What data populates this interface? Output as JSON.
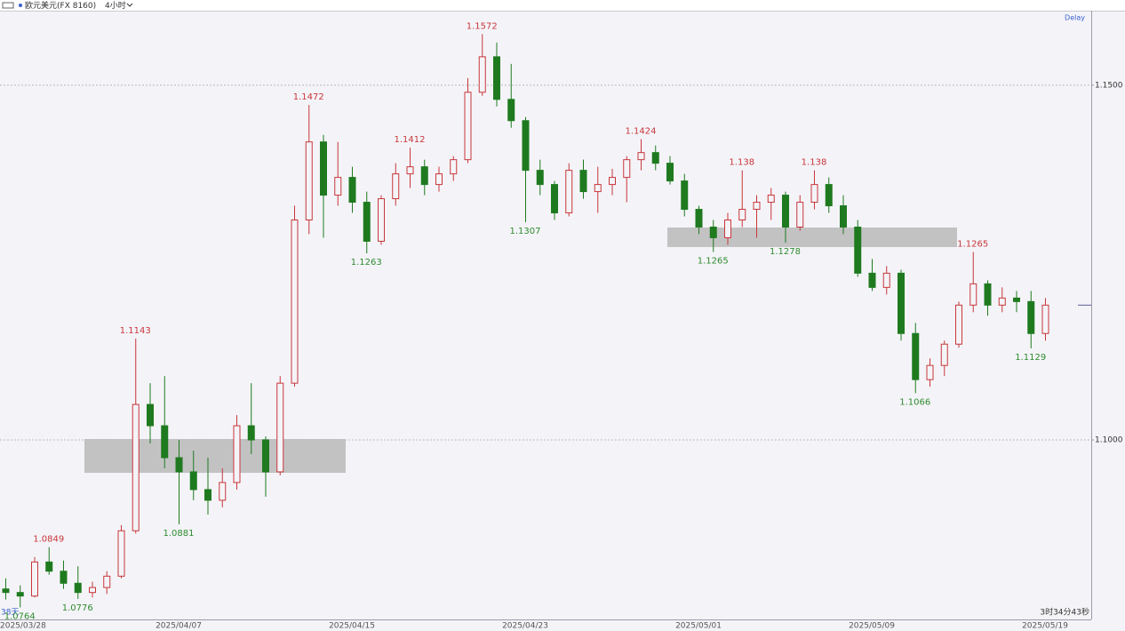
{
  "chart_data": {
    "type": "candlestick",
    "title": "欧元美元(FX 8160)",
    "timeframe": "4小时",
    "delay_label": "Delay",
    "left_footer": "38天",
    "countdown": "3时34分43秒",
    "up_color": "#c8363a",
    "down_color": "#1f7a1f",
    "high_label_color": "#c8363a",
    "low_label_color": "#2e8b2e",
    "grid": true,
    "ylim": [
      1.0747,
      1.1605
    ],
    "yticks": [
      {
        "value": 1.1,
        "label": "1.1000"
      },
      {
        "value": 1.15,
        "label": "1.1500"
      }
    ],
    "categories": [
      "2025/03/28",
      null,
      null,
      null,
      null,
      null,
      null,
      null,
      null,
      null,
      null,
      null,
      "2025/04/07",
      null,
      null,
      null,
      null,
      null,
      null,
      null,
      null,
      null,
      null,
      null,
      "2025/04/15",
      null,
      null,
      null,
      null,
      null,
      null,
      null,
      null,
      null,
      null,
      null,
      "2025/04/23",
      null,
      null,
      null,
      null,
      null,
      null,
      null,
      null,
      null,
      null,
      null,
      "2025/05/01",
      null,
      null,
      null,
      null,
      null,
      null,
      null,
      null,
      null,
      null,
      null,
      "2025/05/09",
      null,
      null,
      null,
      null,
      null,
      null,
      null,
      null,
      null,
      null,
      null,
      "2025/05/19"
    ],
    "open": [
      1.079,
      1.0785,
      1.078,
      1.0828,
      1.0815,
      1.0798,
      1.0785,
      1.0792,
      1.0808,
      1.0872,
      1.105,
      1.102,
      1.0975,
      1.0955,
      1.093,
      1.0915,
      1.094,
      1.102,
      1.1,
      1.0955,
      1.108,
      1.131,
      1.142,
      1.1345,
      1.137,
      1.1335,
      1.128,
      1.134,
      1.1375,
      1.1385,
      1.136,
      1.1375,
      1.1395,
      1.149,
      1.154,
      1.148,
      1.145,
      1.138,
      1.136,
      1.132,
      1.138,
      1.135,
      1.136,
      1.137,
      1.1395,
      1.1405,
      1.139,
      1.1365,
      1.1325,
      1.13,
      1.1285,
      1.131,
      1.1325,
      1.1335,
      1.1345,
      1.13,
      1.1335,
      1.136,
      1.133,
      1.13,
      1.1235,
      1.1215,
      1.1235,
      1.115,
      1.1085,
      1.1105,
      1.1135,
      1.119,
      1.122,
      1.119,
      1.12,
      1.1195,
      1.115
    ],
    "high": [
      1.0805,
      1.0795,
      1.0835,
      1.0849,
      1.083,
      1.0822,
      1.08,
      1.0815,
      1.088,
      1.1143,
      1.108,
      1.109,
      1.1,
      1.0985,
      1.0975,
      1.096,
      1.1035,
      1.108,
      1.1005,
      1.109,
      1.133,
      1.1472,
      1.143,
      1.142,
      1.1385,
      1.135,
      1.1345,
      1.139,
      1.1412,
      1.1395,
      1.1385,
      1.14,
      1.151,
      1.1572,
      1.156,
      1.153,
      1.1455,
      1.1395,
      1.1365,
      1.139,
      1.1395,
      1.1385,
      1.1382,
      1.14,
      1.1424,
      1.1415,
      1.14,
      1.1375,
      1.133,
      1.131,
      1.132,
      1.138,
      1.1345,
      1.1355,
      1.135,
      1.1345,
      1.138,
      1.137,
      1.1345,
      1.131,
      1.1255,
      1.1245,
      1.124,
      1.1165,
      1.1115,
      1.114,
      1.1195,
      1.1265,
      1.1225,
      1.1215,
      1.121,
      1.121,
      1.12
    ],
    "low": [
      1.0775,
      1.0764,
      1.0778,
      1.081,
      1.079,
      1.0776,
      1.0778,
      1.0783,
      1.0805,
      1.0868,
      1.0995,
      1.096,
      1.0881,
      1.0915,
      1.0895,
      1.0905,
      1.093,
      1.098,
      1.092,
      1.095,
      1.1075,
      1.129,
      1.1285,
      1.133,
      1.132,
      1.1263,
      1.1275,
      1.133,
      1.1355,
      1.1345,
      1.135,
      1.1365,
      1.139,
      1.1485,
      1.147,
      1.144,
      1.1307,
      1.1345,
      1.131,
      1.1315,
      1.134,
      1.132,
      1.1345,
      1.1335,
      1.138,
      1.138,
      1.136,
      1.1315,
      1.129,
      1.1265,
      1.1275,
      1.13,
      1.1285,
      1.131,
      1.1278,
      1.1295,
      1.1325,
      1.132,
      1.129,
      1.123,
      1.121,
      1.1205,
      1.114,
      1.1066,
      1.1075,
      1.109,
      1.113,
      1.118,
      1.1175,
      1.118,
      1.118,
      1.1129,
      1.114
    ],
    "close": [
      1.0785,
      1.078,
      1.0828,
      1.0815,
      1.0798,
      1.0785,
      1.0792,
      1.0808,
      1.0872,
      1.105,
      1.102,
      1.0975,
      1.0955,
      1.093,
      1.0915,
      1.094,
      1.102,
      1.1,
      1.0955,
      1.108,
      1.131,
      1.142,
      1.1345,
      1.137,
      1.1335,
      1.128,
      1.134,
      1.1375,
      1.1385,
      1.136,
      1.1375,
      1.1395,
      1.149,
      1.154,
      1.148,
      1.145,
      1.138,
      1.136,
      1.132,
      1.138,
      1.135,
      1.136,
      1.137,
      1.1395,
      1.1405,
      1.139,
      1.1365,
      1.1325,
      1.13,
      1.1285,
      1.131,
      1.1325,
      1.1335,
      1.1345,
      1.13,
      1.1335,
      1.136,
      1.133,
      1.13,
      1.1235,
      1.1215,
      1.1235,
      1.115,
      1.1085,
      1.1105,
      1.1135,
      1.119,
      1.122,
      1.119,
      1.12,
      1.1195,
      1.115,
      1.119
    ],
    "high_labels": [
      1.0849,
      1.1143,
      1.1472,
      1.1412,
      1.1572,
      1.1424,
      1.138,
      1.138,
      1.1265
    ],
    "low_labels": [
      1.0764,
      1.0776,
      1.0881,
      1.1263,
      1.1307,
      1.1265,
      1.1278,
      1.1066,
      1.1129
    ]
  }
}
